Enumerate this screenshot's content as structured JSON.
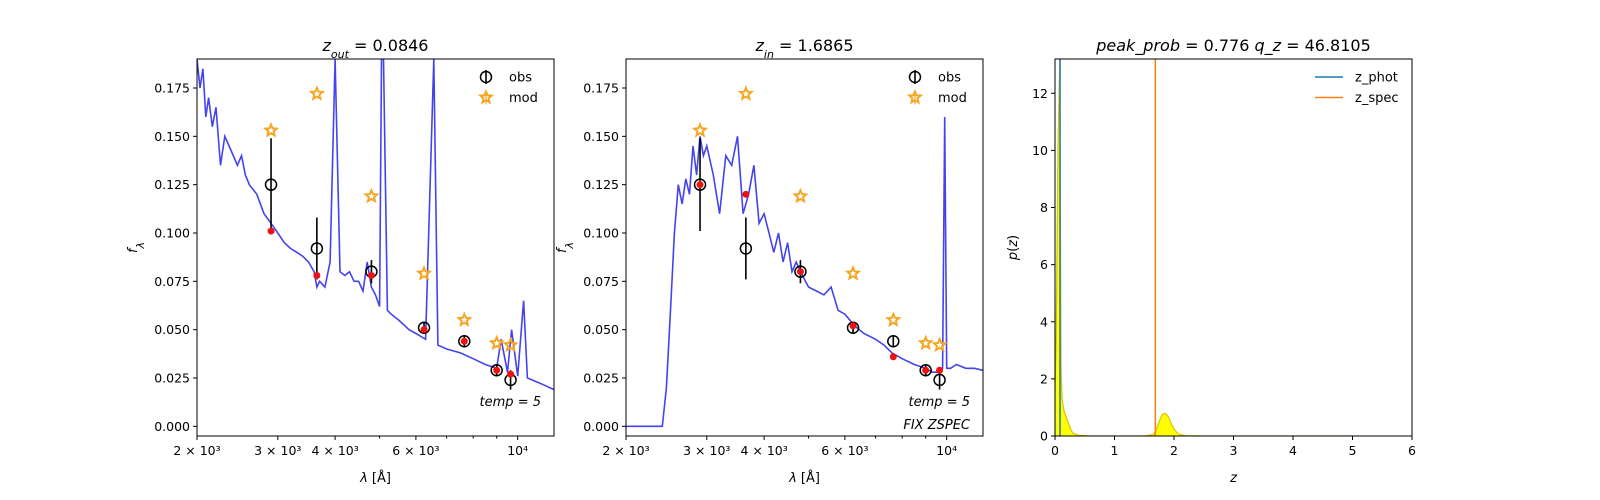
{
  "chart_data": [
    {
      "type": "line",
      "title_main": "z",
      "title_sub": "out",
      "title_value": " = 0.0846",
      "xlabel": "λ [Å]",
      "ylabel": "f",
      "ylabel_sub": "λ",
      "xscale": "log",
      "xlim": [
        2000,
        12000
      ],
      "ylim": [
        -0.005,
        0.19
      ],
      "x_tick_labels": [
        "2 × 10³",
        "3 × 10³",
        "4 × 10³",
        "6 × 10³",
        "10⁴"
      ],
      "x_tick_values": [
        2000,
        3000,
        4000,
        6000,
        10000
      ],
      "y_tick_labels": [
        "0.000",
        "0.025",
        "0.050",
        "0.075",
        "0.100",
        "0.125",
        "0.150",
        "0.175"
      ],
      "y_tick_values": [
        0,
        0.025,
        0.05,
        0.075,
        0.1,
        0.125,
        0.15,
        0.175
      ],
      "legend": [
        "obs",
        "mod"
      ],
      "legend_position": "top-right",
      "annotations": [
        "temp = 5"
      ],
      "spectrum": {
        "color": "#4444ee",
        "x": [
          2000,
          2030,
          2060,
          2090,
          2120,
          2160,
          2200,
          2250,
          2300,
          2350,
          2400,
          2450,
          2500,
          2550,
          2600,
          2700,
          2800,
          2900,
          3000,
          3100,
          3200,
          3300,
          3400,
          3500,
          3600,
          3650,
          3700,
          3800,
          3900,
          4000,
          4100,
          4200,
          4300,
          4400,
          4500,
          4600,
          4700,
          4800,
          4900,
          5000,
          5050,
          5100,
          5200,
          5300,
          5500,
          5800,
          6000,
          6300,
          6563,
          6700,
          7000,
          7500,
          8000,
          8500,
          9000,
          9200,
          9500,
          9700,
          10000,
          10300,
          10500,
          11000,
          11500,
          12000
        ],
        "y": [
          0.19,
          0.175,
          0.185,
          0.16,
          0.17,
          0.155,
          0.165,
          0.135,
          0.15,
          0.145,
          0.14,
          0.135,
          0.14,
          0.13,
          0.125,
          0.12,
          0.11,
          0.105,
          0.1,
          0.095,
          0.092,
          0.09,
          0.088,
          0.085,
          0.08,
          0.072,
          0.075,
          0.072,
          0.085,
          0.19,
          0.08,
          0.078,
          0.08,
          0.075,
          0.075,
          0.07,
          0.085,
          0.072,
          0.068,
          0.062,
          0.19,
          0.19,
          0.06,
          0.058,
          0.055,
          0.05,
          0.048,
          0.045,
          0.19,
          0.042,
          0.04,
          0.038,
          0.035,
          0.032,
          0.03,
          0.045,
          0.028,
          0.05,
          0.026,
          0.065,
          0.025,
          0.023,
          0.021,
          0.019
        ]
      },
      "obs": {
        "x": [
          2900,
          3650,
          4800,
          6250,
          7650,
          9000,
          9650
        ],
        "y": [
          0.125,
          0.092,
          0.08,
          0.051,
          0.044,
          0.029,
          0.024
        ],
        "yerr": [
          0.024,
          0.016,
          0.006,
          0.003,
          0.003,
          0.003,
          0.005
        ]
      },
      "mod_stars": {
        "x": [
          2900,
          3650,
          4800,
          6250,
          7650,
          9000,
          9650
        ],
        "y": [
          0.153,
          0.172,
          0.119,
          0.079,
          0.055,
          0.043,
          0.042
        ]
      },
      "mod_points": {
        "x": [
          2900,
          3650,
          4800,
          6250,
          7650,
          9000,
          9650
        ],
        "y": [
          0.101,
          0.078,
          0.078,
          0.05,
          0.044,
          0.029,
          0.027
        ]
      }
    },
    {
      "type": "line",
      "title_main": "z",
      "title_sub": "in",
      "title_value": " = 1.6865",
      "xlabel": "λ [Å]",
      "ylabel": "f",
      "ylabel_sub": "λ",
      "xscale": "log",
      "xlim": [
        2000,
        12000
      ],
      "ylim": [
        -0.005,
        0.19
      ],
      "x_tick_labels": [
        "2 × 10³",
        "3 × 10³",
        "4 × 10³",
        "6 × 10³",
        "10⁴"
      ],
      "x_tick_values": [
        2000,
        3000,
        4000,
        6000,
        10000
      ],
      "y_tick_labels": [
        "0.000",
        "0.025",
        "0.050",
        "0.075",
        "0.100",
        "0.125",
        "0.150",
        "0.175"
      ],
      "y_tick_values": [
        0,
        0.025,
        0.05,
        0.075,
        0.1,
        0.125,
        0.15,
        0.175
      ],
      "legend": [
        "obs",
        "mod"
      ],
      "legend_position": "top-right",
      "annotations": [
        "temp = 5",
        "FIX ZSPEC"
      ],
      "spectrum": {
        "color": "#4444ee",
        "x": [
          2000,
          2200,
          2400,
          2450,
          2500,
          2550,
          2600,
          2650,
          2700,
          2750,
          2800,
          2850,
          2900,
          2950,
          3000,
          3100,
          3200,
          3300,
          3400,
          3500,
          3600,
          3700,
          3800,
          3900,
          4000,
          4100,
          4200,
          4300,
          4400,
          4500,
          4600,
          4700,
          4800,
          5000,
          5200,
          5400,
          5600,
          5800,
          6000,
          6300,
          6600,
          7000,
          7300,
          7600,
          8000,
          8500,
          9000,
          9300,
          9600,
          9800,
          9900,
          10000,
          10200,
          10500,
          11000,
          11500,
          12000
        ],
        "y": [
          0,
          0,
          0,
          0.02,
          0.06,
          0.1,
          0.125,
          0.115,
          0.128,
          0.12,
          0.145,
          0.13,
          0.15,
          0.14,
          0.145,
          0.13,
          0.11,
          0.14,
          0.135,
          0.15,
          0.11,
          0.12,
          0.135,
          0.105,
          0.11,
          0.1,
          0.09,
          0.1,
          0.085,
          0.095,
          0.08,
          0.085,
          0.08,
          0.072,
          0.07,
          0.068,
          0.072,
          0.06,
          0.058,
          0.052,
          0.048,
          0.045,
          0.042,
          0.038,
          0.035,
          0.032,
          0.03,
          0.028,
          0.028,
          0.03,
          0.16,
          0.03,
          0.03,
          0.032,
          0.03,
          0.03,
          0.029
        ]
      },
      "obs": {
        "x": [
          2900,
          3650,
          4800,
          6250,
          7650,
          9000,
          9650
        ],
        "y": [
          0.125,
          0.092,
          0.08,
          0.051,
          0.044,
          0.029,
          0.024
        ],
        "yerr": [
          0.024,
          0.016,
          0.006,
          0.003,
          0.003,
          0.003,
          0.005
        ]
      },
      "mod_stars": {
        "x": [
          2900,
          3650,
          4800,
          6250,
          7650,
          9000,
          9650
        ],
        "y": [
          0.153,
          0.172,
          0.119,
          0.079,
          0.055,
          0.043,
          0.042
        ]
      },
      "mod_points": {
        "x": [
          2900,
          3650,
          4800,
          6250,
          7650,
          9000,
          9650
        ],
        "y": [
          0.125,
          0.12,
          0.08,
          0.052,
          0.036,
          0.029,
          0.029
        ]
      }
    },
    {
      "type": "area",
      "title_left": "peak_prob = 0.776",
      "title_right": "q_z = 46.8105",
      "xlabel": "z",
      "ylabel": "p(z)",
      "xlim": [
        0,
        6
      ],
      "ylim": [
        0,
        13.2
      ],
      "x_tick_values": [
        0,
        1,
        2,
        3,
        4,
        5,
        6
      ],
      "x_tick_labels": [
        "0",
        "1",
        "2",
        "3",
        "4",
        "5",
        "6"
      ],
      "y_tick_values": [
        0,
        2,
        4,
        6,
        8,
        10,
        12
      ],
      "y_tick_labels": [
        "0",
        "2",
        "4",
        "6",
        "8",
        "10",
        "12"
      ],
      "legend": [
        "z_phot",
        "z_spec"
      ],
      "legend_position": "top-right",
      "series": [
        {
          "name": "z_phot",
          "type": "vline",
          "x": 0.0846,
          "color": "#1f77b4"
        },
        {
          "name": "z_spec",
          "type": "vline",
          "x": 1.6865,
          "color": "#ff7f0e"
        }
      ],
      "pz": {
        "x": [
          0,
          0.02,
          0.05,
          0.08,
          0.1,
          0.12,
          0.15,
          0.2,
          0.25,
          0.3,
          0.4,
          0.6,
          1.0,
          1.5,
          1.65,
          1.7,
          1.75,
          1.8,
          1.85,
          1.9,
          1.95,
          2.0,
          2.05,
          2.1,
          2.2,
          2.5,
          3.0,
          4.0,
          5.0
        ],
        "y": [
          1.6,
          3.5,
          10.2,
          13.2,
          2.5,
          1.3,
          0.9,
          0.6,
          0.3,
          0.1,
          0.02,
          0,
          0,
          0,
          0.05,
          0.2,
          0.5,
          0.75,
          0.8,
          0.7,
          0.45,
          0.25,
          0.12,
          0.05,
          0.01,
          0,
          0,
          0,
          0
        ],
        "fill": "#ffff00",
        "line": "#d8c400"
      }
    }
  ]
}
